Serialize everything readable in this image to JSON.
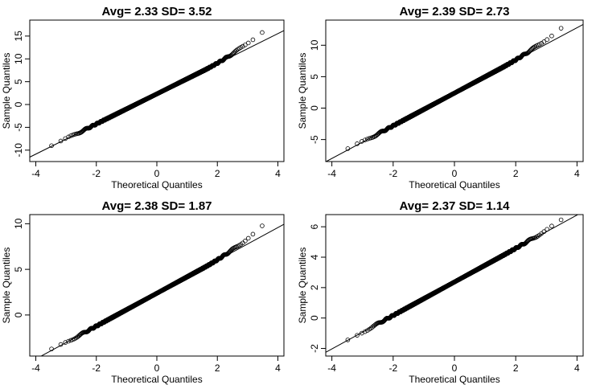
{
  "chart_data": [
    {
      "type": "scatter",
      "title": "Avg= 2.33 SD= 3.52",
      "xlabel": "Theoretical Quantiles",
      "ylabel": "Sample Quantiles",
      "avg": 2.33,
      "sd": 3.52,
      "xlim": [
        -4.2,
        4.2
      ],
      "ylim": [
        -12.5,
        18.5
      ],
      "xticks": [
        -4,
        -2,
        0,
        2,
        4
      ],
      "yticks": [
        -10,
        -5,
        0,
        5,
        10,
        15
      ],
      "reference_line": {
        "intercept": 2.33,
        "slope": 3.3
      },
      "tail_bend": 0.55,
      "points": 2000,
      "grid": false,
      "legend": "none"
    },
    {
      "type": "scatter",
      "title": "Avg= 2.39 SD= 2.73",
      "xlabel": "Theoretical Quantiles",
      "ylabel": "Sample Quantiles",
      "avg": 2.39,
      "sd": 2.73,
      "xlim": [
        -4.2,
        4.2
      ],
      "ylim": [
        -8.5,
        14.0
      ],
      "xticks": [
        -4,
        -2,
        0,
        2,
        4
      ],
      "yticks": [
        -5,
        0,
        5,
        10
      ],
      "reference_line": {
        "intercept": 2.39,
        "slope": 2.6
      },
      "tail_bend": 0.35,
      "points": 2000,
      "grid": false,
      "legend": "none"
    },
    {
      "type": "scatter",
      "title": "Avg= 2.38 SD= 1.87",
      "xlabel": "Theoretical Quantiles",
      "ylabel": "Sample Quantiles",
      "avg": 2.38,
      "sd": 1.87,
      "xlim": [
        -4.2,
        4.2
      ],
      "ylim": [
        -4.5,
        11.0
      ],
      "xticks": [
        -4,
        -2,
        0,
        2,
        4
      ],
      "yticks": [
        0,
        5,
        10
      ],
      "reference_line": {
        "intercept": 2.38,
        "slope": 1.8
      },
      "tail_bend": 0.28,
      "points": 2000,
      "grid": false,
      "legend": "none"
    },
    {
      "type": "scatter",
      "title": "Avg= 2.37 SD= 1.14",
      "xlabel": "Theoretical Quantiles",
      "ylabel": "Sample Quantiles",
      "avg": 2.37,
      "sd": 1.14,
      "xlim": [
        -4.2,
        4.2
      ],
      "ylim": [
        -2.5,
        6.8
      ],
      "xticks": [
        -4,
        -2,
        0,
        2,
        4
      ],
      "yticks": [
        -2,
        0,
        2,
        4,
        6
      ],
      "reference_line": {
        "intercept": 2.37,
        "slope": 1.1
      },
      "tail_bend": 0.05,
      "points": 2000,
      "grid": false,
      "legend": "none"
    }
  ]
}
